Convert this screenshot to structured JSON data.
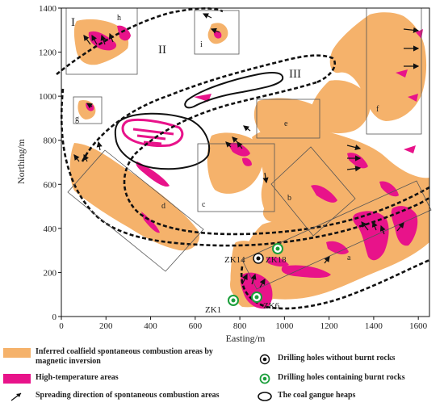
{
  "axes": {
    "xlabel": "Easting/m",
    "ylabel": "Northing/m",
    "xticks": [
      "0",
      "200",
      "400",
      "600",
      "800",
      "1000",
      "1200",
      "1400",
      "1600"
    ],
    "yticks": [
      "0",
      "200",
      "400",
      "600",
      "800",
      "1000",
      "1200",
      "1400"
    ],
    "xlim": [
      0,
      1650
    ],
    "ylim": [
      0,
      1400
    ]
  },
  "zones": [
    "I",
    "II",
    "III"
  ],
  "boxes": [
    "a",
    "b",
    "c",
    "d",
    "e",
    "f",
    "g",
    "h",
    "i"
  ],
  "drillholes": {
    "without_burnt": [
      "ZK14"
    ],
    "with_burnt": [
      "ZK18",
      "ZK1",
      "ZK6"
    ]
  },
  "legend": {
    "coalfield": "Inferred coalfield spontaneous combustion areas by magnetic inversion",
    "high_temp": "High-temperature areas",
    "spreading": "Spreading direction of spontaneous combustion areas",
    "no_burnt": "Drilling holes without burnt rocks",
    "burnt": "Drilling holes containing burnt rocks",
    "heaps": "The coal gangue heaps"
  },
  "colors": {
    "coalfield": "#f5b26b",
    "high_temp": "#e8138a",
    "hole_burnt": "#1a9e3a"
  }
}
